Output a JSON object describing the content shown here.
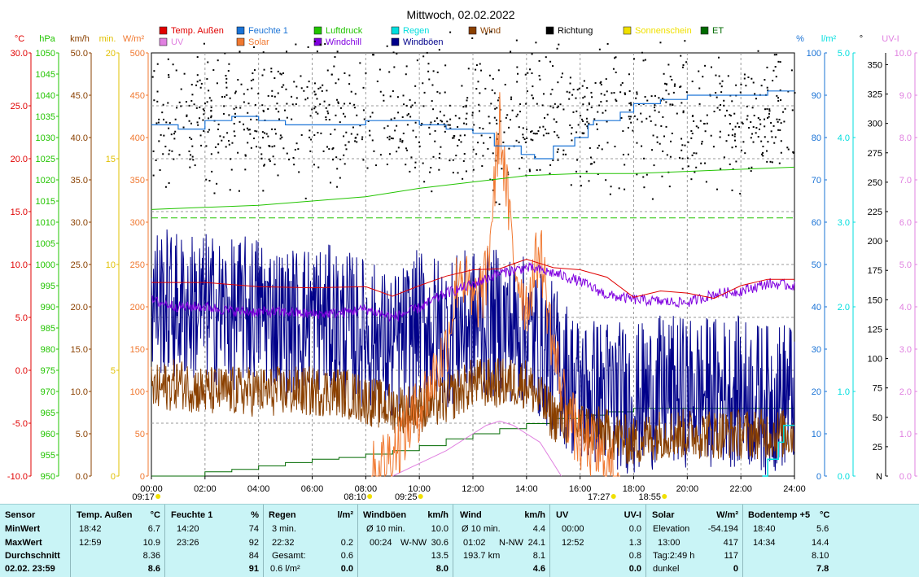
{
  "chart_data": {
    "type": "line",
    "title": "Mittwoch, 02.02.2022",
    "x_ticks": [
      "00:00",
      "02:00",
      "04:00",
      "06:00",
      "08:00",
      "10:00",
      "12:00",
      "14:00",
      "16:00",
      "18:00",
      "20:00",
      "22:00",
      "24:00"
    ],
    "legend": [
      {
        "name": "Temp. Außen",
        "color": "#e00000"
      },
      {
        "name": "Feuchte 1",
        "color": "#1a73d6"
      },
      {
        "name": "Luftdruck",
        "color": "#22c400"
      },
      {
        "name": "Regen",
        "color": "#00dede"
      },
      {
        "name": "Wind",
        "color": "#8a4000"
      },
      {
        "name": "Richtung",
        "color": "#000000"
      },
      {
        "name": "Sonnenschein",
        "color": "#f0e000"
      },
      {
        "name": "ET",
        "color": "#006a00"
      },
      {
        "name": "UV",
        "color": "#e080e0"
      },
      {
        "name": "Solar",
        "color": "#f07830"
      },
      {
        "name": "Windchill",
        "color": "#8000e0"
      },
      {
        "name": "Windböen",
        "color": "#00008a"
      }
    ],
    "left_axes": [
      {
        "unit": "°C",
        "color": "#e00000",
        "ticks": [
          "30.0",
          "25.0",
          "20.0",
          "15.0",
          "10.0",
          "5.0",
          "0.0",
          "-5.0",
          "-10.0"
        ]
      },
      {
        "unit": "hPa",
        "color": "#22c400",
        "ticks": [
          "1050",
          "1045",
          "1040",
          "1035",
          "1030",
          "1025",
          "1020",
          "1015",
          "1010",
          "1005",
          "1000",
          "995",
          "990",
          "985",
          "980",
          "975",
          "970",
          "965",
          "960",
          "955",
          "950"
        ]
      },
      {
        "unit": "km/h",
        "color": "#8a4000",
        "ticks": [
          "50.0",
          "45.0",
          "40.0",
          "35.0",
          "30.0",
          "25.0",
          "20.0",
          "15.0",
          "10.0",
          "5.0",
          "0.0"
        ]
      },
      {
        "unit": "min.",
        "color": "#e0c000",
        "ticks": [
          "20",
          "15",
          "10",
          "5",
          "0"
        ]
      },
      {
        "unit": "W/m²",
        "color": "#f07830",
        "ticks": [
          "500",
          "450",
          "400",
          "350",
          "300",
          "250",
          "200",
          "150",
          "100",
          "50",
          "0"
        ]
      }
    ],
    "right_axes": [
      {
        "unit": "%",
        "color": "#1a73d6",
        "ticks": [
          "100",
          "90",
          "80",
          "70",
          "60",
          "50",
          "40",
          "30",
          "20",
          "10",
          "0"
        ]
      },
      {
        "unit": "l/m²",
        "color": "#00dede",
        "ticks": [
          "5.0",
          "4.0",
          "3.0",
          "2.0",
          "1.0",
          "0.0"
        ]
      },
      {
        "unit": "°",
        "color": "#000000",
        "ticks": [
          "350",
          "325",
          "300",
          "275",
          "250",
          "225",
          "200",
          "175",
          "150",
          "125",
          "100",
          "75",
          "50",
          "25",
          "N"
        ]
      },
      {
        "unit": "UV-I",
        "color": "#e080e0",
        "ticks": [
          "10.0",
          "9.0",
          "8.0",
          "7.0",
          "6.0",
          "5.0",
          "4.0",
          "3.0",
          "2.0",
          "1.0",
          "0.0"
        ]
      }
    ],
    "xlim_hours": [
      0,
      24
    ],
    "series": [
      {
        "name": "Temp. Außen",
        "axis": "°C",
        "x": [
          0,
          2,
          4,
          6,
          8,
          9,
          10,
          11,
          12,
          13,
          14,
          15,
          16,
          17,
          18,
          19,
          20,
          21,
          22,
          23,
          24
        ],
        "y": [
          8.3,
          8.3,
          7.9,
          7.8,
          7.9,
          7.0,
          8.0,
          8.9,
          9.5,
          9.6,
          10.5,
          9.7,
          9.5,
          8.8,
          6.9,
          7.5,
          7.3,
          6.8,
          8.0,
          8.6,
          8.6
        ]
      },
      {
        "name": "Windchill",
        "axis": "°C",
        "x": [
          0,
          1,
          2,
          3,
          4,
          5,
          6,
          7,
          8,
          9,
          10,
          11,
          12,
          13,
          14,
          15,
          16,
          17,
          18,
          19,
          20,
          21,
          22,
          23,
          24
        ],
        "y": [
          6.6,
          6.0,
          6.0,
          5.6,
          5.5,
          5.5,
          5.3,
          5.4,
          5.8,
          5.0,
          5.9,
          7.3,
          8.1,
          9.2,
          9.7,
          9.2,
          8.4,
          7.1,
          6.7,
          6.5,
          6.4,
          7.2,
          7.5,
          8.2,
          8.0
        ]
      },
      {
        "name": "Feuchte 1",
        "axis": "%",
        "x": [
          0,
          1,
          2,
          3,
          4,
          5,
          6,
          7,
          8,
          9,
          10,
          11,
          12,
          12.8,
          13.8,
          14.3,
          15,
          15.8,
          16.3,
          16.5,
          17.5,
          18,
          19,
          20,
          21,
          22,
          23,
          24
        ],
        "y": [
          83,
          82,
          84,
          85,
          84,
          83,
          83,
          83,
          84,
          84,
          83,
          82,
          81,
          78,
          76,
          75,
          78,
          80,
          83,
          84,
          86,
          88,
          89,
          90,
          90,
          90,
          91,
          91
        ]
      },
      {
        "name": "Luftdruck",
        "axis": "hPa",
        "x": [
          0,
          2,
          4,
          6,
          8,
          10,
          12,
          14,
          16,
          18,
          20,
          22,
          24
        ],
        "y": [
          1013,
          1013.5,
          1014,
          1015,
          1016,
          1018,
          1019.5,
          1021,
          1021.5,
          1021.5,
          1022,
          1022.5,
          1023
        ]
      },
      {
        "name": "Wind",
        "axis": "km/h",
        "x": [
          0,
          1,
          2,
          3,
          4,
          5,
          6,
          7,
          8,
          9,
          10,
          11,
          12,
          13,
          14,
          15,
          16,
          17,
          18,
          19,
          20,
          21,
          22,
          23,
          24
        ],
        "y": [
          10,
          11,
          10,
          10,
          10,
          10,
          10,
          10,
          9,
          8,
          8,
          9,
          11,
          11,
          11,
          7,
          6,
          5,
          4,
          5,
          5,
          5,
          5,
          5,
          5
        ]
      },
      {
        "name": "Windböen",
        "axis": "km/h",
        "x": [
          0,
          1,
          2,
          3,
          4,
          5,
          6,
          7,
          8,
          9,
          10,
          11,
          12,
          13,
          14,
          15,
          16,
          17,
          18,
          19,
          20,
          21,
          22,
          23,
          24
        ],
        "y": [
          21,
          20,
          20,
          19,
          20,
          18,
          19,
          18,
          17,
          15,
          18,
          17,
          18,
          18,
          17,
          14,
          10,
          10,
          9,
          10,
          10,
          10,
          10,
          9,
          10
        ]
      },
      {
        "name": "Solar",
        "axis": "W/m²",
        "x": [
          8.2,
          9,
          10,
          11,
          11.5,
          12,
          12.5,
          13,
          13.5,
          14,
          14.5,
          15,
          15.5,
          16,
          16.5,
          17,
          17.5
        ],
        "y": [
          0,
          30,
          80,
          150,
          250,
          200,
          230,
          417,
          260,
          200,
          270,
          150,
          80,
          40,
          30,
          10,
          0
        ]
      },
      {
        "name": "UV",
        "axis": "UV-I",
        "x": [
          9,
          10,
          11,
          12,
          12.5,
          13,
          13.5,
          14,
          14.5,
          15,
          15.3
        ],
        "y": [
          0,
          0.3,
          0.6,
          1.0,
          1.2,
          1.3,
          1.2,
          1.0,
          0.8,
          0.3,
          0
        ]
      },
      {
        "name": "ET",
        "axis": "l/m²",
        "x": [
          0,
          1,
          2,
          3,
          4,
          5,
          6,
          7,
          8,
          9,
          10,
          11,
          12,
          13,
          14,
          15,
          16,
          17,
          18,
          19,
          20,
          21,
          22,
          23,
          24
        ],
        "y": [
          0,
          0,
          0.05,
          0.08,
          0.12,
          0.16,
          0.2,
          0.22,
          0.26,
          0.3,
          0.36,
          0.44,
          0.5,
          0.56,
          0.62,
          0.68,
          0.72,
          0.76,
          0.8,
          0.8,
          0.8,
          0.8,
          0.8,
          0.8,
          0.8
        ]
      },
      {
        "name": "Regen",
        "axis": "l/m²",
        "x": [
          22.8,
          23.0,
          23.2,
          23.4,
          23.6,
          23.8,
          24
        ],
        "y": [
          0,
          0.2,
          0.2,
          0.4,
          0.6,
          0.6,
          0.6
        ]
      }
    ],
    "sunshine_blocks": [
      [
        8.6,
        8.9
      ],
      [
        9.1,
        9.3
      ],
      [
        9.6,
        9.9
      ],
      [
        10.2,
        10.4
      ],
      [
        10.7,
        10.9
      ],
      [
        11.1,
        11.5
      ],
      [
        11.7,
        12.3
      ],
      [
        12.5,
        13.5
      ],
      [
        13.7,
        14.5
      ],
      [
        15.9,
        16.3
      ],
      [
        16.5,
        16.9
      ]
    ],
    "sunshine_axis_min_per_block": 2,
    "direction_deg_range": [
      160,
      360
    ],
    "below_axis": [
      {
        "text": "09:17",
        "x_hour": -0.3
      },
      {
        "text": "08:10",
        "x_hour": 7.6
      },
      {
        "text": "09:25",
        "x_hour": 9.5
      },
      {
        "text": "17:27",
        "x_hour": 16.7
      },
      {
        "text": "18:55",
        "x_hour": 18.6
      }
    ]
  },
  "table": {
    "sensor": {
      "header": "Sensor",
      "rows": [
        "MinWert",
        "MaxWert",
        "Durchschnitt",
        "02.02.  23:59"
      ]
    },
    "temp": {
      "header": "Temp. Außen",
      "unit": "°C",
      "rows": [
        [
          "18:42",
          "6.7"
        ],
        [
          "12:59",
          "10.9"
        ],
        [
          "",
          "8.36"
        ],
        [
          "",
          "8.6"
        ]
      ]
    },
    "feuchte": {
      "header": "Feuchte 1",
      "unit": "%",
      "rows": [
        [
          "14:20",
          "74"
        ],
        [
          "23:26",
          "92"
        ],
        [
          "",
          "84"
        ],
        [
          "",
          "91"
        ]
      ]
    },
    "regen": {
      "header": "Regen",
      "unit": "l/m²",
      "rows": [
        [
          "3 min.",
          ""
        ],
        [
          "22:32",
          "0.2"
        ],
        [
          "Gesamt:",
          "0.6"
        ],
        [
          "0.6 l/m²",
          "0.0"
        ]
      ]
    },
    "windboeen": {
      "header": "Windböen",
      "unit": "km/h",
      "rows": [
        [
          "Ø 10 min.",
          "",
          "10.0"
        ],
        [
          "00:24",
          "W-NW",
          "30.6"
        ],
        [
          "",
          "",
          "13.5"
        ],
        [
          "",
          "",
          "8.0"
        ]
      ]
    },
    "wind": {
      "header": "Wind",
      "unit": "km/h",
      "rows": [
        [
          "Ø 10 min.",
          "",
          "4.4"
        ],
        [
          "01:02",
          "N-NW",
          "24.1"
        ],
        [
          "193.7 km",
          "",
          "8.1"
        ],
        [
          "",
          "",
          "4.6"
        ]
      ]
    },
    "uv": {
      "header": "UV",
      "unit": "UV-I",
      "rows": [
        [
          "00:00",
          "0.0"
        ],
        [
          "12:52",
          "1.3"
        ],
        [
          "",
          "0.8"
        ],
        [
          "",
          "0.0"
        ]
      ]
    },
    "solar": {
      "header": "Solar",
      "unit": "W/m²",
      "rows": [
        [
          "Elevation",
          "-54.194"
        ],
        [
          "13:00",
          "417"
        ],
        [
          "Tag:2:49 h",
          "117"
        ],
        [
          "dunkel",
          "0"
        ]
      ]
    },
    "boden": {
      "header": "Bodentemp +5",
      "unit": "°C",
      "rows": [
        [
          "18:40",
          "5.6"
        ],
        [
          "14:34",
          "14.4"
        ],
        [
          "",
          "8.10"
        ],
        [
          "",
          "7.8"
        ]
      ]
    }
  }
}
